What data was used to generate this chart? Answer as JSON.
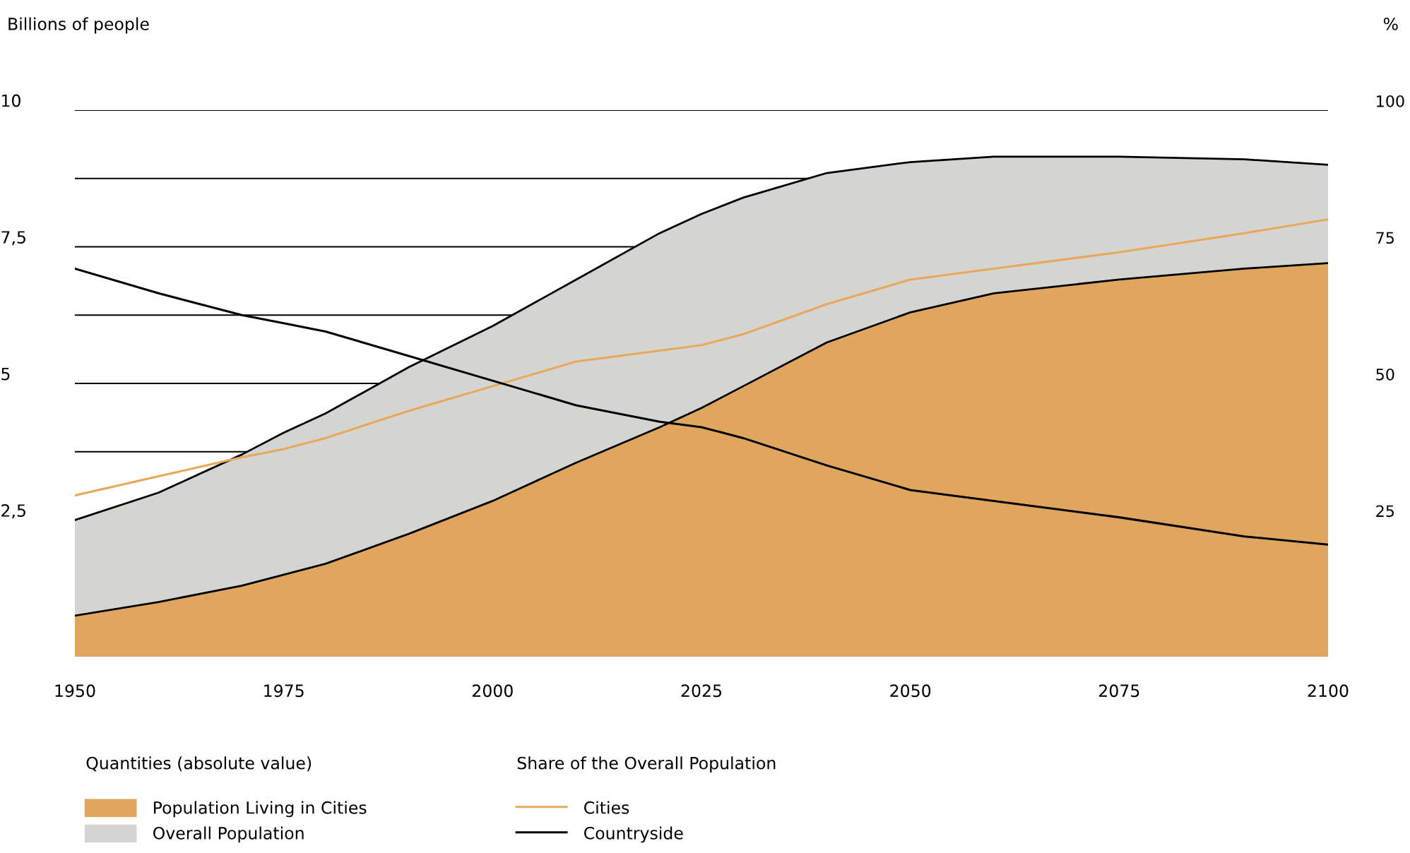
{
  "chart_data": {
    "type": "area",
    "ylabel": "Billions of people",
    "y2label": "%",
    "x": [
      1950,
      1960,
      1970,
      1975,
      1980,
      1990,
      2000,
      2010,
      2020,
      2025,
      2030,
      2040,
      2050,
      2060,
      2075,
      2090,
      2100
    ],
    "series": [
      {
        "name": "Overall Population",
        "color": "#d4d4d2",
        "values": [
          2.5,
          3.0,
          3.7,
          4.1,
          4.45,
          5.3,
          6.05,
          6.9,
          7.75,
          8.1,
          8.4,
          8.85,
          9.05,
          9.15,
          9.15,
          9.1,
          9.0
        ]
      },
      {
        "name": "Population Living in Cities",
        "color": "#e0a660",
        "values": [
          0.75,
          1.0,
          1.3,
          1.5,
          1.7,
          2.25,
          2.85,
          3.55,
          4.2,
          4.55,
          4.95,
          5.75,
          6.3,
          6.65,
          6.9,
          7.1,
          7.2
        ]
      },
      {
        "name": "Cities",
        "type": "line",
        "axis": "y2",
        "color": "#e8a85a",
        "values": [
          29.5,
          33,
          36.5,
          38,
          40,
          45,
          49.5,
          54,
          56,
          57,
          59,
          64.5,
          69,
          71,
          74,
          77.5,
          80
        ]
      },
      {
        "name": "Countryside",
        "type": "line",
        "axis": "y2",
        "color": "#000000",
        "values": [
          71,
          66.5,
          62.5,
          61,
          59.5,
          55,
          50.5,
          46,
          43,
          42,
          40,
          35,
          30.5,
          28.5,
          25.5,
          22,
          20.5
        ]
      }
    ],
    "xlim": [
      1950,
      2100
    ],
    "xticks": [
      1950,
      1975,
      2000,
      2025,
      2050,
      2075,
      2100
    ],
    "ylim": [
      0,
      10
    ],
    "yticks": [
      {
        "value": 2.5,
        "label": "2,5"
      },
      {
        "value": 3.75,
        "label": null
      },
      5,
      {
        "value": 6.25,
        "label": null
      },
      {
        "value": 7.5,
        "label": "7,5"
      },
      {
        "value": 8.75,
        "label": null
      },
      10
    ],
    "y2lim": [
      0,
      100
    ],
    "y2ticks": [
      25,
      50,
      75,
      100
    ],
    "grid": "y",
    "legend": "bottom",
    "annotations": [
      "Quantities (absolute value)",
      "Share of the Overall Population"
    ]
  }
}
